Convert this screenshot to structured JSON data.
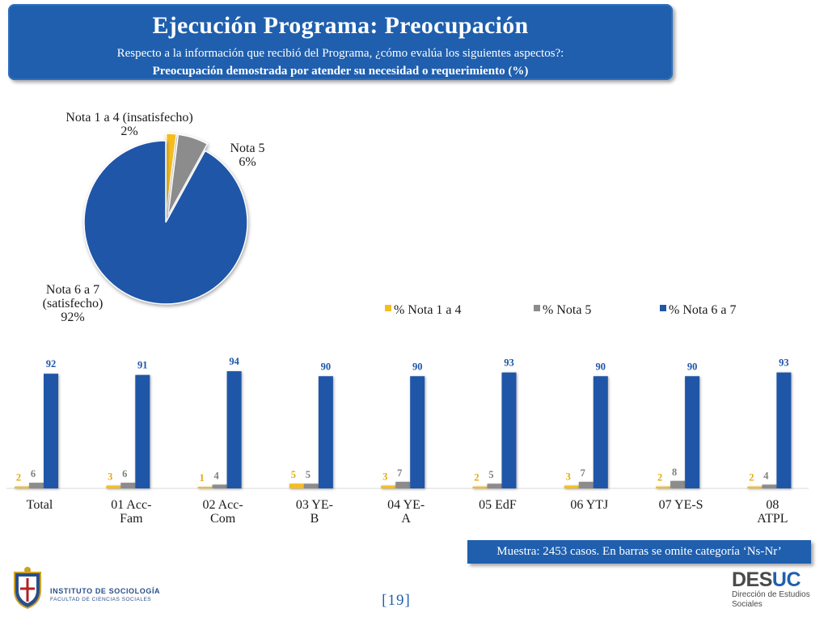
{
  "header": {
    "title": "Ejecución Programa: Preocupación",
    "subtitle": "Respecto a la información que recibió del Programa, ¿cómo evalúa los siguientes aspectos?:",
    "subtitle2": "Preocupación demostrada por atender su necesidad o requerimiento (%)"
  },
  "colors": {
    "header_bg": "#1f5fae",
    "nota_1_4": "#f5bd1f",
    "nota_5": "#8c8c8c",
    "nota_6_7": "#1f56a8"
  },
  "chart_data": [
    {
      "type": "pie",
      "slices": [
        {
          "label_lines": [
            "Nota 1 a 4 (insatisfecho)"
          ],
          "value": 2,
          "value_label": "2%"
        },
        {
          "label_lines": [
            "Nota 5"
          ],
          "value": 6,
          "value_label": "6%"
        },
        {
          "label_lines": [
            "Nota 6 a 7",
            "(satisfecho)"
          ],
          "value": 92,
          "value_label": "92%"
        }
      ]
    },
    {
      "type": "bar",
      "categories": [
        [
          "Total"
        ],
        [
          "01 Acc-",
          "Fam"
        ],
        [
          "02 Acc-",
          "Com"
        ],
        [
          "03 YE-",
          "B"
        ],
        [
          "04 YE-",
          "A"
        ],
        [
          "05 EdF"
        ],
        [
          "06 YTJ"
        ],
        [
          "07 YE-S"
        ],
        [
          "08",
          "ATPL"
        ]
      ],
      "series": [
        {
          "name": "% Nota 1 a 4",
          "values": [
            2,
            3,
            1,
            5,
            3,
            2,
            3,
            2,
            2
          ]
        },
        {
          "name": "% Nota 5",
          "values": [
            6,
            6,
            4,
            5,
            7,
            5,
            7,
            8,
            4
          ]
        },
        {
          "name": "% Nota 6 a 7",
          "values": [
            92,
            91,
            94,
            90,
            90,
            93,
            90,
            90,
            93
          ]
        }
      ],
      "ylim": [
        0,
        100
      ],
      "grid": false,
      "legend": "top-right"
    }
  ],
  "footer": {
    "sample_note": "Muestra: 2453 casos. En barras se omite categoría ‘Ns-Nr’",
    "page_number": "[19]",
    "institute_name": "INSTITUTO DE SOCIOLOGÍA",
    "institute_faculty": "FACULTAD DE CIENCIAS SOCIALES",
    "desuc_brand_a": "DES",
    "desuc_brand_b": "UC",
    "desuc_line1": "Dirección de Estudios",
    "desuc_line2": "Sociales"
  }
}
